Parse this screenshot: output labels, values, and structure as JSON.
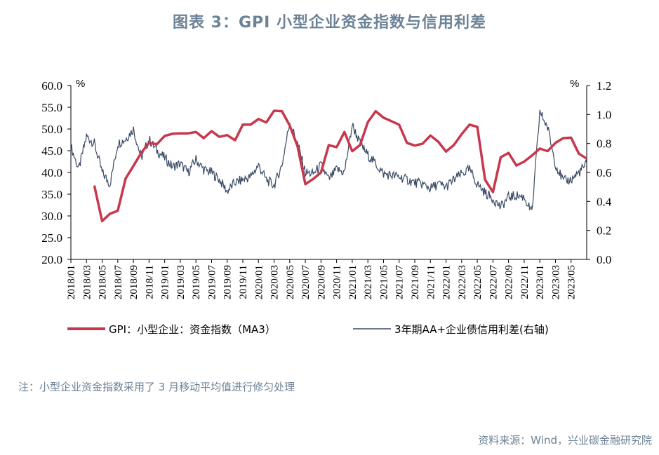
{
  "title": "图表 3：GPI 小型企业资金指数与信用利差",
  "note": "注：小型企业资金指数采用了 3 月移动平均值进行修匀处理",
  "source": "资料来源：Wind，兴业碳金融研究院",
  "colors": {
    "gpi": "#c8374c",
    "spread": "#3b4a66",
    "title": "#6c8296"
  },
  "chart_data": {
    "type": "line",
    "left_unit": "%",
    "right_unit": "%",
    "y_left_ticks": [
      "60.0",
      "55.0",
      "50.0",
      "45.0",
      "40.0",
      "35.0",
      "30.0",
      "25.0",
      "20.0"
    ],
    "y_right_ticks": [
      "1.2",
      "1.0",
      "0.8",
      "0.6",
      "0.4",
      "0.2",
      "0.0"
    ],
    "ylim_left": [
      20,
      60
    ],
    "ylim_right": [
      0,
      1.2
    ],
    "x_start": "2018-01",
    "x_end": "2023-07",
    "x_ticks": [
      "2018/01",
      "2018/03",
      "2018/05",
      "2018/07",
      "2018/09",
      "2018/11",
      "2019/01",
      "2019/03",
      "2019/05",
      "2019/07",
      "2019/09",
      "2019/11",
      "2020/01",
      "2020/03",
      "2020/05",
      "2020/07",
      "2020/09",
      "2020/11",
      "2021/01",
      "2021/03",
      "2021/05",
      "2021/07",
      "2021/09",
      "2021/11",
      "2022/01",
      "2022/03",
      "2022/05",
      "2022/07",
      "2022/09",
      "2022/11",
      "2023/01",
      "2023/03",
      "2023/05"
    ],
    "legend": [
      {
        "label": "GPI：小型企业：资金指数（MA3）",
        "series": "gpi"
      },
      {
        "label": "3年期AA+企业债信用利差(右轴)",
        "series": "spread"
      }
    ],
    "series": [
      {
        "key": "gpi",
        "name": "GPI：小型企业：资金指数（MA3）",
        "axis": "left",
        "points": [
          [
            "2018-04",
            37.0
          ],
          [
            "2018-05",
            28.8
          ],
          [
            "2018-06",
            30.5
          ],
          [
            "2018-07",
            31.2
          ],
          [
            "2018-08",
            38.6
          ],
          [
            "2018-09",
            41.5
          ],
          [
            "2018-10",
            44.5
          ],
          [
            "2018-11",
            46.8
          ],
          [
            "2018-12",
            46.5
          ],
          [
            "2019-01",
            48.4
          ],
          [
            "2019-02",
            48.9
          ],
          [
            "2019-03",
            49.0
          ],
          [
            "2019-04",
            49.0
          ],
          [
            "2019-05",
            49.3
          ],
          [
            "2019-06",
            47.9
          ],
          [
            "2019-07",
            49.5
          ],
          [
            "2019-08",
            48.2
          ],
          [
            "2019-09",
            48.6
          ],
          [
            "2019-10",
            47.4
          ],
          [
            "2019-11",
            51.0
          ],
          [
            "2019-12",
            51.0
          ],
          [
            "2020-01",
            52.3
          ],
          [
            "2020-02",
            51.5
          ],
          [
            "2020-03",
            54.2
          ],
          [
            "2020-04",
            54.1
          ],
          [
            "2020-05",
            50.8
          ],
          [
            "2020-06",
            46.0
          ],
          [
            "2020-07",
            37.3
          ],
          [
            "2020-08",
            38.5
          ],
          [
            "2020-09",
            40.0
          ],
          [
            "2020-10",
            46.3
          ],
          [
            "2020-11",
            45.8
          ],
          [
            "2020-12",
            49.3
          ],
          [
            "2020-13",
            44.0
          ],
          [
            "2021-01",
            44.9
          ],
          [
            "2021-02",
            46.3
          ],
          [
            "2021-03",
            51.6
          ],
          [
            "2021-04",
            54.1
          ],
          [
            "2021-05",
            52.6
          ],
          [
            "2021-06",
            51.8
          ],
          [
            "2021-07",
            51.0
          ],
          [
            "2021-08",
            46.8
          ],
          [
            "2021-09",
            46.2
          ],
          [
            "2021-10",
            46.6
          ],
          [
            "2021-11",
            48.5
          ],
          [
            "2021-12",
            47.1
          ],
          [
            "2022-01",
            44.8
          ],
          [
            "2022-02",
            46.3
          ],
          [
            "2022-03",
            48.8
          ],
          [
            "2022-04",
            51.0
          ],
          [
            "2022-05",
            50.5
          ],
          [
            "2022-06",
            38.3
          ],
          [
            "2022-07",
            35.5
          ],
          [
            "2022-08",
            43.5
          ],
          [
            "2022-09",
            44.5
          ],
          [
            "2022-10",
            41.6
          ],
          [
            "2022-11",
            42.5
          ],
          [
            "2022-12",
            43.9
          ],
          [
            "2023-01",
            45.5
          ],
          [
            "2023-02",
            44.9
          ],
          [
            "2023-03",
            46.8
          ],
          [
            "2023-04",
            47.9
          ],
          [
            "2023-05",
            48.0
          ],
          [
            "2023-06",
            44.3
          ],
          [
            "2023-07",
            43.2
          ]
        ]
      },
      {
        "key": "spread",
        "name": "3年期AA+企业债信用利差(右轴)",
        "axis": "right",
        "points": [
          [
            "2018-01",
            0.78
          ],
          [
            "2018-02",
            0.62
          ],
          [
            "2018-03",
            0.85
          ],
          [
            "2018-04",
            0.8
          ],
          [
            "2018-05",
            0.6
          ],
          [
            "2018-06",
            0.52
          ],
          [
            "2018-07",
            0.8
          ],
          [
            "2018-08",
            0.83
          ],
          [
            "2018-09",
            0.9
          ],
          [
            "2018-10",
            0.7
          ],
          [
            "2018-11",
            0.83
          ],
          [
            "2018-12",
            0.75
          ],
          [
            "2019-01",
            0.7
          ],
          [
            "2019-02",
            0.64
          ],
          [
            "2019-03",
            0.66
          ],
          [
            "2019-04",
            0.6
          ],
          [
            "2019-05",
            0.69
          ],
          [
            "2019-06",
            0.62
          ],
          [
            "2019-07",
            0.6
          ],
          [
            "2019-08",
            0.55
          ],
          [
            "2019-09",
            0.47
          ],
          [
            "2019-10",
            0.53
          ],
          [
            "2019-11",
            0.55
          ],
          [
            "2019-12",
            0.57
          ],
          [
            "2020-01",
            0.65
          ],
          [
            "2020-02",
            0.55
          ],
          [
            "2020-03",
            0.51
          ],
          [
            "2020-04",
            0.65
          ],
          [
            "2020-05",
            0.95
          ],
          [
            "2020-06",
            0.8
          ],
          [
            "2020-07",
            0.6
          ],
          [
            "2020-08",
            0.59
          ],
          [
            "2020-09",
            0.65
          ],
          [
            "2020-10",
            0.55
          ],
          [
            "2020-11",
            0.62
          ],
          [
            "2020-12",
            0.6
          ],
          [
            "2021-01",
            0.93
          ],
          [
            "2021-02",
            0.8
          ],
          [
            "2021-03",
            0.72
          ],
          [
            "2021-04",
            0.66
          ],
          [
            "2021-05",
            0.59
          ],
          [
            "2021-06",
            0.58
          ],
          [
            "2021-07",
            0.57
          ],
          [
            "2021-08",
            0.55
          ],
          [
            "2021-09",
            0.53
          ],
          [
            "2021-10",
            0.52
          ],
          [
            "2021-11",
            0.49
          ],
          [
            "2021-12",
            0.52
          ],
          [
            "2022-01",
            0.5
          ],
          [
            "2022-02",
            0.55
          ],
          [
            "2022-03",
            0.59
          ],
          [
            "2022-04",
            0.62
          ],
          [
            "2022-05",
            0.52
          ],
          [
            "2022-06",
            0.46
          ],
          [
            "2022-07",
            0.42
          ],
          [
            "2022-08",
            0.36
          ],
          [
            "2022-09",
            0.43
          ],
          [
            "2022-10",
            0.44
          ],
          [
            "2022-11",
            0.43
          ],
          [
            "2022-12",
            0.32
          ],
          [
            "2023-01",
            1.02
          ],
          [
            "2023-02",
            0.91
          ],
          [
            "2023-03",
            0.66
          ],
          [
            "2023-04",
            0.54
          ],
          [
            "2023-05",
            0.55
          ],
          [
            "2023-06",
            0.6
          ],
          [
            "2023-07",
            0.66
          ]
        ]
      }
    ]
  }
}
